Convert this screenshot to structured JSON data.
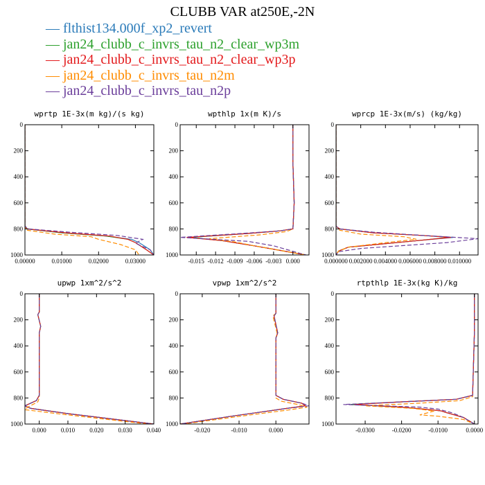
{
  "title": "CLUBB VAR at250E,-2N",
  "legend": [
    {
      "label": "flthist134.000f_xp2_revert",
      "color": "#2b7bb9",
      "dash": ""
    },
    {
      "label": "jan24_clubb_c_invrs_tau_n2_clear_wp3m",
      "color": "#2ca02c",
      "dash": ""
    },
    {
      "label": "jan24_clubb_c_invrs_tau_n2_clear_wp3p",
      "color": "#e31a1c",
      "dash": ""
    },
    {
      "label": "jan24_clubb_c_invrs_tau_n2m",
      "color": "#ff8c00",
      "dash": "6,3"
    },
    {
      "label": "jan24_clubb_c_invrs_tau_n2p",
      "color": "#6a3d9a",
      "dash": "6,3"
    }
  ],
  "chart_data": [
    {
      "type": "line",
      "title": "wprtp  1E-3x(m kg)/(s kg)",
      "xlim": [
        0,
        0.035
      ],
      "ylim": [
        1000,
        0
      ],
      "xticks": [
        0,
        0.01,
        0.02,
        0.03
      ],
      "xticklabels": [
        "0.00000",
        "0.01000",
        "0.02000",
        "0.03000"
      ],
      "yticks": [
        0,
        200,
        400,
        600,
        800,
        1000
      ],
      "yticklabels": [
        "0",
        "200",
        "400",
        "600",
        "800",
        "1000"
      ],
      "series": [
        {
          "x": [
            0,
            0,
            0.0005,
            0.01,
            0.022,
            0.029,
            0.031,
            0.034,
            0.035
          ],
          "y": [
            0,
            780,
            800,
            830,
            855,
            880,
            905,
            960,
            1000
          ]
        },
        {
          "x": [
            0,
            0,
            0.0005,
            0.01,
            0.022,
            0.028,
            0.03,
            0.033,
            0.035
          ],
          "y": [
            0,
            780,
            800,
            830,
            855,
            880,
            905,
            960,
            1000
          ]
        },
        {
          "x": [
            0,
            0,
            0.0005,
            0.011,
            0.023,
            0.028,
            0.03,
            0.033,
            0.035
          ],
          "y": [
            0,
            780,
            800,
            830,
            855,
            880,
            905,
            960,
            1000
          ]
        },
        {
          "x": [
            0,
            0,
            0.0005,
            0.008,
            0.018,
            0.02,
            0.026,
            0.03,
            0.031
          ],
          "y": [
            0,
            780,
            810,
            840,
            860,
            880,
            920,
            960,
            1000
          ]
        },
        {
          "x": [
            0,
            0,
            0.001,
            0.012,
            0.025,
            0.032,
            0.03,
            0.034,
            0.035
          ],
          "y": [
            0,
            780,
            800,
            825,
            850,
            880,
            910,
            960,
            1000
          ]
        }
      ]
    },
    {
      "type": "line",
      "title": "wpthlp  1x(m K)/s",
      "xlim": [
        -0.0175,
        0.0025
      ],
      "ylim": [
        1000,
        0
      ],
      "xticks": [
        -0.015,
        -0.012,
        -0.009,
        -0.006,
        -0.003,
        0
      ],
      "xticklabels": [
        "-0.015",
        "-0.012",
        "-0.009",
        "-0.006",
        "-0.003",
        "0.000"
      ],
      "yticks": [
        0,
        200,
        400,
        600,
        800,
        1000
      ],
      "yticklabels": [
        "0",
        "200",
        "400",
        "600",
        "800",
        "1000"
      ],
      "series": [
        {
          "x": [
            0,
            0,
            0.0002,
            0,
            -0.002,
            -0.007,
            -0.016,
            -0.011,
            -0.006,
            0.002
          ],
          "y": [
            0,
            300,
            600,
            800,
            815,
            835,
            865,
            890,
            930,
            1000
          ]
        },
        {
          "x": [
            0,
            0,
            0.0002,
            0,
            -0.002,
            -0.007,
            -0.016,
            -0.011,
            -0.006,
            0.002
          ],
          "y": [
            0,
            300,
            600,
            800,
            815,
            835,
            865,
            890,
            930,
            1000
          ]
        },
        {
          "x": [
            0,
            0,
            0.0002,
            0,
            -0.002,
            -0.007,
            -0.0165,
            -0.011,
            -0.006,
            0.002
          ],
          "y": [
            0,
            300,
            600,
            800,
            815,
            835,
            865,
            890,
            930,
            1000
          ]
        },
        {
          "x": [
            0,
            0,
            0.0002,
            0,
            -0.001,
            -0.005,
            -0.013,
            -0.009,
            -0.006,
            0.002
          ],
          "y": [
            0,
            300,
            600,
            800,
            820,
            845,
            875,
            900,
            930,
            1000
          ]
        },
        {
          "x": [
            0,
            0,
            0.0002,
            0,
            -0.002,
            -0.008,
            -0.0175,
            -0.007,
            -0.003,
            0.002
          ],
          "y": [
            0,
            300,
            600,
            800,
            815,
            835,
            865,
            895,
            930,
            1000
          ]
        }
      ]
    },
    {
      "type": "line",
      "title": "wprcp  1E-3x(m/s) (kg/kg)",
      "xlim": [
        0,
        0.0115
      ],
      "ylim": [
        1000,
        0
      ],
      "xticks": [
        0,
        0.002,
        0.004,
        0.006,
        0.008,
        0.01
      ],
      "xticklabels": [
        "0.000000",
        "0.002000",
        "0.004000",
        "0.006000",
        "0.008000",
        "0.010000"
      ],
      "yticks": [
        0,
        200,
        400,
        600,
        800,
        1000
      ],
      "yticklabels": [
        "0",
        "200",
        "400",
        "600",
        "800",
        "1000"
      ],
      "series": [
        {
          "x": [
            0,
            0,
            0.0003,
            0.003,
            0.007,
            0.0095,
            0.006,
            0.001,
            0.0002,
            0
          ],
          "y": [
            0,
            780,
            800,
            830,
            850,
            865,
            895,
            940,
            970,
            1000
          ]
        },
        {
          "x": [
            0,
            0,
            0.0003,
            0.003,
            0.007,
            0.0092,
            0.006,
            0.001,
            0.0002,
            0
          ],
          "y": [
            0,
            780,
            800,
            830,
            850,
            865,
            895,
            940,
            970,
            1000
          ]
        },
        {
          "x": [
            0,
            0,
            0.0003,
            0.003,
            0.007,
            0.0093,
            0.006,
            0.001,
            0.0002,
            0
          ],
          "y": [
            0,
            780,
            800,
            830,
            850,
            865,
            895,
            940,
            970,
            1000
          ]
        },
        {
          "x": [
            0,
            0,
            0.0003,
            0.002,
            0.0055,
            0.0065,
            0.0045,
            0.001,
            0.0002,
            0
          ],
          "y": [
            0,
            780,
            810,
            840,
            860,
            880,
            900,
            940,
            970,
            1000
          ]
        },
        {
          "x": [
            0,
            0,
            0.0003,
            0.003,
            0.007,
            0.0115,
            0.009,
            0.002,
            0.0002,
            0
          ],
          "y": [
            0,
            780,
            800,
            825,
            850,
            875,
            905,
            950,
            975,
            1000
          ]
        }
      ]
    },
    {
      "type": "line",
      "title": "upwp  1xm^2/s^2",
      "xlim": [
        -0.005,
        0.04
      ],
      "ylim": [
        1000,
        0
      ],
      "xticks": [
        0,
        0.01,
        0.02,
        0.03,
        0.04
      ],
      "xticklabels": [
        "0.000",
        "0.010",
        "0.020",
        "0.030",
        "0.040"
      ],
      "yticks": [
        0,
        200,
        400,
        600,
        800,
        1000
      ],
      "yticklabels": [
        "0",
        "200",
        "400",
        "600",
        "800",
        "1000"
      ],
      "series": [
        {
          "x": [
            0,
            0,
            -0.0005,
            0.0005,
            0,
            0,
            -0.001,
            -0.005,
            -0.003,
            0.01,
            0.025,
            0.04
          ],
          "y": [
            0,
            140,
            160,
            250,
            300,
            780,
            820,
            860,
            880,
            920,
            960,
            1000
          ]
        },
        {
          "x": [
            0,
            0,
            -0.0005,
            0.0005,
            0,
            0,
            -0.001,
            -0.005,
            -0.003,
            0.01,
            0.025,
            0.04
          ],
          "y": [
            0,
            140,
            160,
            250,
            300,
            780,
            820,
            860,
            880,
            920,
            960,
            1000
          ]
        },
        {
          "x": [
            0,
            0,
            -0.0005,
            0.0005,
            0,
            0,
            -0.001,
            -0.005,
            -0.003,
            0.01,
            0.025,
            0.04
          ],
          "y": [
            0,
            140,
            160,
            250,
            300,
            780,
            820,
            860,
            880,
            920,
            960,
            1000
          ]
        },
        {
          "x": [
            0,
            0,
            -0.0005,
            0.0005,
            0,
            0,
            -0.0005,
            -0.004,
            -0.005,
            0.008,
            0.022,
            0.038
          ],
          "y": [
            0,
            140,
            160,
            250,
            300,
            800,
            830,
            870,
            890,
            925,
            960,
            1000
          ]
        },
        {
          "x": [
            0,
            0,
            -0.0005,
            0.0005,
            0,
            0,
            -0.001,
            -0.005,
            -0.003,
            0.01,
            0.025,
            0.04
          ],
          "y": [
            0,
            140,
            160,
            250,
            300,
            780,
            820,
            860,
            880,
            920,
            960,
            1000
          ]
        }
      ]
    },
    {
      "type": "line",
      "title": "vpwp  1xm^2/s^2",
      "xlim": [
        -0.026,
        0.009
      ],
      "ylim": [
        1000,
        0
      ],
      "xticks": [
        -0.02,
        -0.01,
        0
      ],
      "xticklabels": [
        "-0.020",
        "-0.010",
        "0.000"
      ],
      "yticks": [
        0,
        200,
        400,
        600,
        800,
        1000
      ],
      "yticklabels": [
        "0",
        "200",
        "400",
        "600",
        "800",
        "1000"
      ],
      "series": [
        {
          "x": [
            0,
            0,
            -0.0005,
            0.0005,
            0,
            0,
            0.002,
            0.007,
            0.008,
            0.003,
            -0.012,
            -0.026
          ],
          "y": [
            0,
            150,
            170,
            300,
            340,
            780,
            810,
            840,
            860,
            880,
            940,
            1000
          ]
        },
        {
          "x": [
            0,
            0,
            -0.0005,
            0.0005,
            0,
            0,
            0.002,
            0.007,
            0.008,
            0.003,
            -0.012,
            -0.026
          ],
          "y": [
            0,
            150,
            170,
            300,
            340,
            780,
            810,
            840,
            860,
            880,
            940,
            1000
          ]
        },
        {
          "x": [
            0,
            0,
            -0.0005,
            0.0005,
            0,
            0,
            0.002,
            0.007,
            0.008,
            0.003,
            -0.012,
            -0.026
          ],
          "y": [
            0,
            150,
            170,
            300,
            340,
            780,
            810,
            840,
            860,
            880,
            940,
            1000
          ]
        },
        {
          "x": [
            0,
            0,
            -0.0008,
            0.0003,
            0,
            0,
            0.0015,
            0.006,
            0.0085,
            0.004,
            -0.011,
            -0.025
          ],
          "y": [
            0,
            150,
            170,
            300,
            340,
            800,
            825,
            850,
            870,
            890,
            945,
            1000
          ]
        },
        {
          "x": [
            0,
            0,
            -0.0005,
            0.0005,
            0,
            0,
            0.002,
            0.007,
            0.009,
            0.003,
            -0.012,
            -0.026
          ],
          "y": [
            0,
            150,
            170,
            300,
            340,
            780,
            810,
            840,
            860,
            880,
            940,
            1000
          ]
        }
      ]
    },
    {
      "type": "line",
      "title": "rtpthlp  1E-3x(kg K)/kg",
      "xlim": [
        -0.038,
        0.001
      ],
      "ylim": [
        1000,
        0
      ],
      "xticks": [
        -0.03,
        -0.02,
        -0.01,
        0
      ],
      "xticklabels": [
        "-0.0300",
        "-0.0200",
        "-0.0100",
        "0.0000"
      ],
      "yticks": [
        0,
        200,
        400,
        600,
        800,
        1000
      ],
      "yticklabels": [
        "0",
        "200",
        "400",
        "600",
        "800",
        "1000"
      ],
      "series": [
        {
          "x": [
            0,
            0,
            -0.0005,
            -0.005,
            -0.02,
            -0.034,
            -0.02,
            -0.012,
            -0.009,
            -0.008,
            -0.003,
            0
          ],
          "y": [
            0,
            300,
            780,
            810,
            830,
            850,
            870,
            890,
            900,
            910,
            950,
            1000
          ]
        },
        {
          "x": [
            0,
            0,
            -0.0005,
            -0.005,
            -0.02,
            -0.034,
            -0.02,
            -0.012,
            -0.009,
            -0.008,
            -0.003,
            0
          ],
          "y": [
            0,
            300,
            780,
            810,
            830,
            850,
            870,
            890,
            900,
            910,
            950,
            1000
          ]
        },
        {
          "x": [
            0,
            0,
            -0.0005,
            -0.005,
            -0.02,
            -0.033,
            -0.02,
            -0.012,
            -0.009,
            -0.008,
            -0.003,
            0
          ],
          "y": [
            0,
            300,
            780,
            810,
            830,
            850,
            870,
            890,
            900,
            910,
            950,
            1000
          ]
        },
        {
          "x": [
            0,
            0,
            -0.0005,
            -0.004,
            -0.015,
            -0.03,
            -0.017,
            -0.011,
            -0.015,
            -0.01,
            -0.003,
            0
          ],
          "y": [
            0,
            300,
            790,
            820,
            840,
            860,
            880,
            900,
            930,
            940,
            965,
            1000
          ]
        },
        {
          "x": [
            0,
            0,
            -0.0005,
            -0.005,
            -0.02,
            -0.036,
            -0.015,
            -0.01,
            -0.008,
            -0.006,
            -0.003,
            0
          ],
          "y": [
            0,
            300,
            780,
            810,
            830,
            850,
            870,
            885,
            900,
            915,
            950,
            1000
          ]
        }
      ]
    }
  ]
}
